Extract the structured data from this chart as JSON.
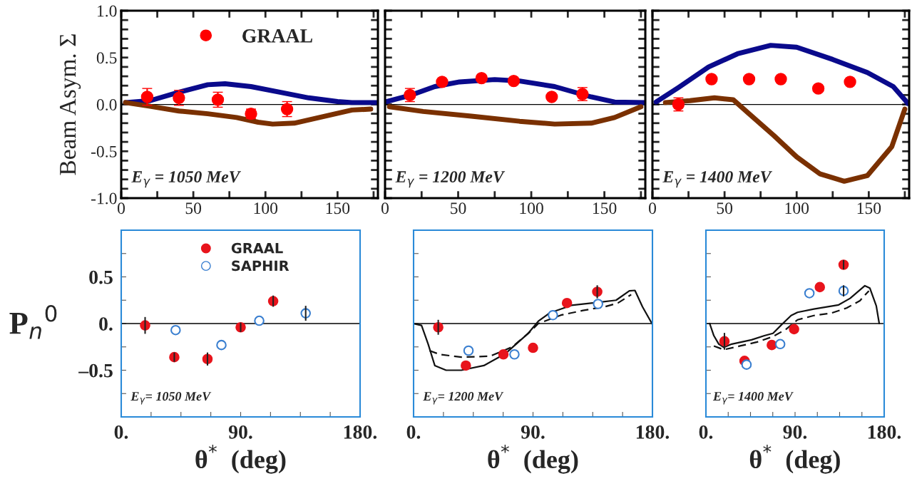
{
  "chart_data": [
    {
      "type": "scatter",
      "xlim": [
        0,
        178
      ],
      "ylim": [
        -1,
        1
      ],
      "ylabel": "Beam Asym. Σ",
      "legend": "top",
      "tick_labels": true,
      "xticks": [
        0,
        {
          "value": 25,
          "label": null
        },
        50,
        {
          "value": 75,
          "label": null
        },
        100,
        {
          "value": 125,
          "label": null
        },
        150,
        {
          "value": 175,
          "label": null
        }
      ],
      "yticks": [
        {
          "value": -1,
          "label": "-1.0"
        },
        {
          "value": -0.9,
          "label": null
        },
        {
          "value": -0.8,
          "label": null
        },
        {
          "value": -0.7,
          "label": null
        },
        {
          "value": -0.6,
          "label": null
        },
        {
          "value": -0.5,
          "label": "-0.5"
        },
        {
          "value": -0.4,
          "label": null
        },
        {
          "value": -0.3,
          "label": null
        },
        {
          "value": -0.2,
          "label": null
        },
        {
          "value": -0.1,
          "label": null
        },
        {
          "value": 0,
          "label": "0.0"
        },
        {
          "value": 0.1,
          "label": null
        },
        {
          "value": 0.2,
          "label": null
        },
        {
          "value": 0.3,
          "label": null
        },
        {
          "value": 0.4,
          "label": null
        },
        {
          "value": 0.5,
          "label": "0.5"
        },
        {
          "value": 0.6,
          "label": null
        },
        {
          "value": 0.7,
          "label": null
        },
        {
          "value": 0.8,
          "label": null
        },
        {
          "value": 0.9,
          "label": null
        },
        {
          "value": 1,
          "label": "1.0"
        }
      ],
      "annotations": [
        "E$_{γ}$ = 1050 MeV"
      ],
      "ref_lines": [
        {
          "axis": "y",
          "value": 0
        }
      ],
      "series": [
        {
          "type": "line",
          "color": "#0a0a8c",
          "x": [
            3,
            20,
            40,
            60,
            72,
            90,
            110,
            130,
            150,
            160,
            178
          ],
          "values": [
            0.02,
            0.04,
            0.13,
            0.21,
            0.22,
            0.19,
            0.13,
            0.07,
            0.03,
            0.02,
            0.02
          ]
        },
        {
          "type": "line",
          "color": "#7a3000",
          "x": [
            3,
            20,
            40,
            60,
            80,
            95,
            105,
            120,
            140,
            160,
            173
          ],
          "values": [
            0.02,
            -0.02,
            -0.07,
            -0.1,
            -0.14,
            -0.19,
            -0.21,
            -0.2,
            -0.13,
            -0.06,
            -0.05
          ]
        },
        {
          "name": "GRAAL",
          "color": "#ff0000",
          "marker": "circle",
          "x": [
            18,
            40,
            67,
            90,
            115
          ],
          "values": [
            0.08,
            0.07,
            0.05,
            -0.1,
            -0.05
          ],
          "errors": [
            0.09,
            0.08,
            0.08,
            0.05,
            0.08
          ]
        }
      ]
    },
    {
      "type": "scatter",
      "xlim": [
        0,
        178
      ],
      "ylim": [
        -1,
        1
      ],
      "tick_labels": "x",
      "xticks": [
        0,
        {
          "value": 25,
          "label": null
        },
        50,
        {
          "value": 75,
          "label": null
        },
        100,
        {
          "value": 125,
          "label": null
        },
        150,
        {
          "value": 175,
          "label": null
        }
      ],
      "yticks": [
        {
          "value": -1,
          "label": null
        },
        {
          "value": -0.9,
          "label": null
        },
        {
          "value": -0.8,
          "label": null
        },
        {
          "value": -0.7,
          "label": null
        },
        {
          "value": -0.6,
          "label": null
        },
        {
          "value": -0.5,
          "label": null
        },
        {
          "value": -0.4,
          "label": null
        },
        {
          "value": -0.3,
          "label": null
        },
        {
          "value": -0.2,
          "label": null
        },
        {
          "value": -0.1,
          "label": null
        },
        {
          "value": 0,
          "label": null
        },
        {
          "value": 0.1,
          "label": null
        },
        {
          "value": 0.2,
          "label": null
        },
        {
          "value": 0.3,
          "label": null
        },
        {
          "value": 0.4,
          "label": null
        },
        {
          "value": 0.5,
          "label": null
        },
        {
          "value": 0.6,
          "label": null
        },
        {
          "value": 0.7,
          "label": null
        },
        {
          "value": 0.8,
          "label": null
        },
        {
          "value": 0.9,
          "label": null
        },
        {
          "value": 1,
          "label": null
        }
      ],
      "annotations": [
        "E$_{γ}$ = 1200 MeV"
      ],
      "ref_lines": [
        {
          "axis": "y",
          "value": 0
        }
      ],
      "series": [
        {
          "type": "line",
          "color": "#0a0a8c",
          "x": [
            0,
            18,
            34,
            51,
            75,
            92,
            116,
            141,
            157,
            178
          ],
          "values": [
            0.025,
            0.1,
            0.19,
            0.24,
            0.265,
            0.25,
            0.19,
            0.08,
            0.025,
            0.02
          ]
        },
        {
          "type": "line",
          "color": "#7a3000",
          "x": [
            3,
            26,
            59,
            92,
            116,
            141,
            157,
            175
          ],
          "values": [
            -0.025,
            -0.075,
            -0.125,
            -0.18,
            -0.21,
            -0.2,
            -0.14,
            -0.025
          ]
        },
        {
          "color": "#ff0000",
          "marker": "circle",
          "x": [
            17,
            39,
            66,
            88,
            114,
            135
          ],
          "values": [
            0.1,
            0.24,
            0.28,
            0.25,
            0.08,
            0.11
          ],
          "errors": [
            0.07,
            null,
            null,
            null,
            null,
            0.07
          ]
        }
      ]
    },
    {
      "type": "scatter",
      "xlim": [
        0,
        178
      ],
      "ylim": [
        -1,
        1
      ],
      "tick_labels": "x",
      "xticks": [
        0,
        {
          "value": 25,
          "label": null
        },
        50,
        {
          "value": 75,
          "label": null
        },
        100,
        {
          "value": 125,
          "label": null
        },
        150,
        {
          "value": 175,
          "label": null
        }
      ],
      "yticks": [
        {
          "value": -1,
          "label": null
        },
        {
          "value": -0.9,
          "label": null
        },
        {
          "value": -0.8,
          "label": null
        },
        {
          "value": -0.7,
          "label": null
        },
        {
          "value": -0.6,
          "label": null
        },
        {
          "value": -0.5,
          "label": null
        },
        {
          "value": -0.4,
          "label": null
        },
        {
          "value": -0.3,
          "label": null
        },
        {
          "value": -0.2,
          "label": null
        },
        {
          "value": -0.1,
          "label": null
        },
        {
          "value": 0,
          "label": null
        },
        {
          "value": 0.1,
          "label": null
        },
        {
          "value": 0.2,
          "label": null
        },
        {
          "value": 0.3,
          "label": null
        },
        {
          "value": 0.4,
          "label": null
        },
        {
          "value": 0.5,
          "label": null
        },
        {
          "value": 0.6,
          "label": null
        },
        {
          "value": 0.7,
          "label": null
        },
        {
          "value": 0.8,
          "label": null
        },
        {
          "value": 0.9,
          "label": null
        },
        {
          "value": 1,
          "label": null
        }
      ],
      "annotations": [
        "E$_{γ}$ = 1400 MeV"
      ],
      "ref_lines": [
        {
          "axis": "y",
          "value": 0
        }
      ],
      "series": [
        {
          "type": "line",
          "color": "#0a0a8c",
          "x": [
            2.5,
            18,
            39,
            59,
            82,
            100,
            125,
            149,
            167,
            175,
            177
          ],
          "values": [
            0.025,
            0.18,
            0.4,
            0.54,
            0.63,
            0.61,
            0.48,
            0.34,
            0.19,
            0.05,
            0.01
          ]
        },
        {
          "type": "line",
          "color": "#7a3000",
          "x": [
            9,
            26,
            43,
            56,
            67,
            84,
            100,
            116,
            133,
            149,
            166,
            175
          ],
          "values": [
            0.02,
            0.04,
            0.07,
            0.05,
            -0.1,
            -0.33,
            -0.56,
            -0.74,
            -0.82,
            -0.76,
            -0.45,
            -0.05
          ]
        },
        {
          "color": "#ff0000",
          "marker": "circle",
          "x": [
            18,
            41,
            67,
            89,
            115,
            137
          ],
          "values": [
            0.0,
            0.27,
            0.27,
            0.27,
            0.17,
            0.24
          ],
          "errors": [
            0.07,
            null,
            null,
            null,
            null,
            null
          ]
        }
      ]
    },
    {
      "type": "scatter",
      "xlim": [
        0,
        180
      ],
      "ylim": [
        -1,
        1
      ],
      "ylabel": "P$_{n}$$^{0}$",
      "xlabel": "θ$^{*}$  (deg)",
      "legend": "top",
      "tick_labels": true,
      "xticks": [
        {
          "value": 0,
          "label": "0."
        },
        {
          "value": 22.5,
          "label": null
        },
        {
          "value": 45,
          "label": null
        },
        {
          "value": 67.5,
          "label": null
        },
        {
          "value": 90,
          "label": "90."
        },
        {
          "value": 112.5,
          "label": null
        },
        {
          "value": 135,
          "label": null
        },
        {
          "value": 157.5,
          "label": null
        },
        {
          "value": 180,
          "label": "180."
        }
      ],
      "yticks": [
        {
          "value": -0.75,
          "label": null
        },
        {
          "value": -0.5,
          "label": "–0.5"
        },
        {
          "value": -0.25,
          "label": null
        },
        {
          "value": 0,
          "label": "0."
        },
        {
          "value": 0.25,
          "label": null
        },
        {
          "value": 0.5,
          "label": "0.5"
        },
        {
          "value": 0.75,
          "label": null
        }
      ],
      "annotations": [
        "E$_{γ}$= 1050 MeV"
      ],
      "ref_lines": [
        {
          "axis": "y",
          "value": 0
        }
      ],
      "series": [
        {
          "name": "GRAAL",
          "color": "#e8141c",
          "marker": "circle",
          "x": [
            18,
            40,
            65,
            90,
            114.5
          ],
          "values": [
            -0.02,
            -0.36,
            -0.38,
            -0.04,
            0.24
          ],
          "errors": [
            0.09,
            0.05,
            0.07,
            0.05,
            0.06
          ]
        },
        {
          "name": "SAPHIR",
          "color": "#3a7fd0",
          "marker": "circle",
          "x": [
            41,
            75.5,
            104,
            139
          ],
          "values": [
            -0.07,
            -0.23,
            0.03,
            0.11
          ],
          "errors": [
            null,
            null,
            null,
            0.08
          ]
        }
      ]
    },
    {
      "type": "scatter",
      "xlim": [
        0,
        180
      ],
      "ylim": [
        -1,
        1
      ],
      "xlabel": "θ$^{*}$  (deg)",
      "tick_labels": "x",
      "xticks": [
        {
          "value": 0,
          "label": "0."
        },
        {
          "value": 22.5,
          "label": null
        },
        {
          "value": 45,
          "label": null
        },
        {
          "value": 67.5,
          "label": null
        },
        {
          "value": 90,
          "label": "90."
        },
        {
          "value": 112.5,
          "label": null
        },
        {
          "value": 135,
          "label": null
        },
        {
          "value": 157.5,
          "label": null
        },
        {
          "value": 180,
          "label": "180."
        }
      ],
      "yticks": [
        {
          "value": -0.75,
          "label": null
        },
        {
          "value": -0.5,
          "label": null
        },
        {
          "value": -0.25,
          "label": null
        },
        {
          "value": 0,
          "label": null
        },
        {
          "value": 0.25,
          "label": null
        },
        {
          "value": 0.5,
          "label": null
        },
        {
          "value": 0.75,
          "label": null
        }
      ],
      "annotations": [
        "E$_{γ}$= 1200 MeV"
      ],
      "ref_lines": [
        {
          "axis": "y",
          "value": 0
        }
      ],
      "series": [
        {
          "type": "line",
          "color": "#111111",
          "line_style": "solid",
          "x": [
            0,
            6,
            11,
            16,
            24.5,
            36,
            53,
            69.4,
            86,
            94,
            102.7,
            119,
            141,
            152.6,
            162.6,
            166.8,
            172.5,
            180
          ],
          "values": [
            0,
            -0.02,
            -0.22,
            -0.45,
            -0.5,
            -0.5,
            -0.45,
            -0.32,
            -0.11,
            0.025,
            0.115,
            0.195,
            0.23,
            0.25,
            0.35,
            0.355,
            0.18,
            -0.01
          ]
        },
        {
          "type": "line",
          "color": "#111111",
          "line_style": "dashed",
          "x": [
            12,
            19.5,
            36,
            57.7,
            74.4,
            87.6,
            94,
            111,
            127.6,
            144,
            154,
            164
          ],
          "values": [
            -0.29,
            -0.33,
            -0.36,
            -0.35,
            -0.25,
            -0.09,
            0.0,
            0.09,
            0.14,
            0.18,
            0.22,
            0.31
          ]
        },
        {
          "color": "#e8141c",
          "marker": "circle",
          "x": [
            18.6,
            39.4,
            67.7,
            90,
            115.6,
            138.4
          ],
          "values": [
            -0.04,
            -0.45,
            -0.33,
            -0.26,
            0.22,
            0.34
          ],
          "errors": [
            0.08,
            null,
            null,
            null,
            null,
            0.07
          ]
        },
        {
          "color": "#3a7fd0",
          "marker": "circle",
          "x": [
            41.4,
            76,
            105,
            139
          ],
          "values": [
            -0.29,
            -0.33,
            0.09,
            0.21
          ]
        }
      ]
    },
    {
      "type": "scatter",
      "xlim": [
        0,
        180
      ],
      "ylim": [
        -1,
        1
      ],
      "xlabel": "θ$^{*}$  (deg)",
      "tick_labels": "x",
      "xticks": [
        {
          "value": 0,
          "label": "0."
        },
        {
          "value": 22.5,
          "label": null
        },
        {
          "value": 45,
          "label": null
        },
        {
          "value": 67.5,
          "label": null
        },
        {
          "value": 90,
          "label": "90."
        },
        {
          "value": 112.5,
          "label": null
        },
        {
          "value": 135,
          "label": null
        },
        {
          "value": 157.5,
          "label": null
        },
        {
          "value": 180,
          "label": "180."
        }
      ],
      "yticks": [
        {
          "value": -0.75,
          "label": null
        },
        {
          "value": -0.5,
          "label": null
        },
        {
          "value": -0.25,
          "label": null
        },
        {
          "value": 0,
          "label": null
        },
        {
          "value": 0.25,
          "label": null
        },
        {
          "value": 0.5,
          "label": null
        },
        {
          "value": 0.75,
          "label": null
        }
      ],
      "annotations": [
        "E$_{γ}$= 1400 MeV"
      ],
      "ref_lines": [
        {
          "axis": "y",
          "value": 0
        }
      ],
      "series": [
        {
          "type": "line",
          "color": "#111111",
          "line_style": "solid",
          "x": [
            3.8,
            8,
            13,
            18,
            26,
            46,
            59,
            67.7,
            76,
            86,
            92.5,
            109,
            134,
            145.6,
            160.5,
            165.5,
            172,
            175
          ],
          "values": [
            0,
            -0.13,
            -0.22,
            -0.255,
            -0.22,
            -0.175,
            -0.13,
            -0.105,
            -0.016,
            0.086,
            0.12,
            0.155,
            0.2,
            0.27,
            0.405,
            0.38,
            0.19,
            0
          ]
        },
        {
          "type": "line",
          "color": "#111111",
          "line_style": "dashed",
          "x": [
            8,
            18,
            34.5,
            51,
            67.7,
            81,
            92.5,
            109,
            126,
            142,
            155.5,
            164.5
          ],
          "values": [
            -0.24,
            -0.28,
            -0.24,
            -0.2,
            -0.14,
            -0.06,
            0.04,
            0.086,
            0.11,
            0.166,
            0.245,
            0.35
          ]
        },
        {
          "color": "#e8141c",
          "marker": "circle",
          "x": [
            18.7,
            39,
            66.5,
            89,
            115,
            139
          ],
          "values": [
            -0.19,
            -0.4,
            -0.23,
            -0.06,
            0.39,
            0.63
          ],
          "errors": [
            0.09,
            null,
            null,
            null,
            null,
            0.05
          ]
        },
        {
          "color": "#3a7fd0",
          "marker": "circle",
          "x": [
            41,
            75,
            104.5,
            139
          ],
          "values": [
            -0.44,
            -0.22,
            0.325,
            0.35
          ],
          "errors": [
            null,
            null,
            null,
            0.06
          ]
        }
      ]
    }
  ]
}
